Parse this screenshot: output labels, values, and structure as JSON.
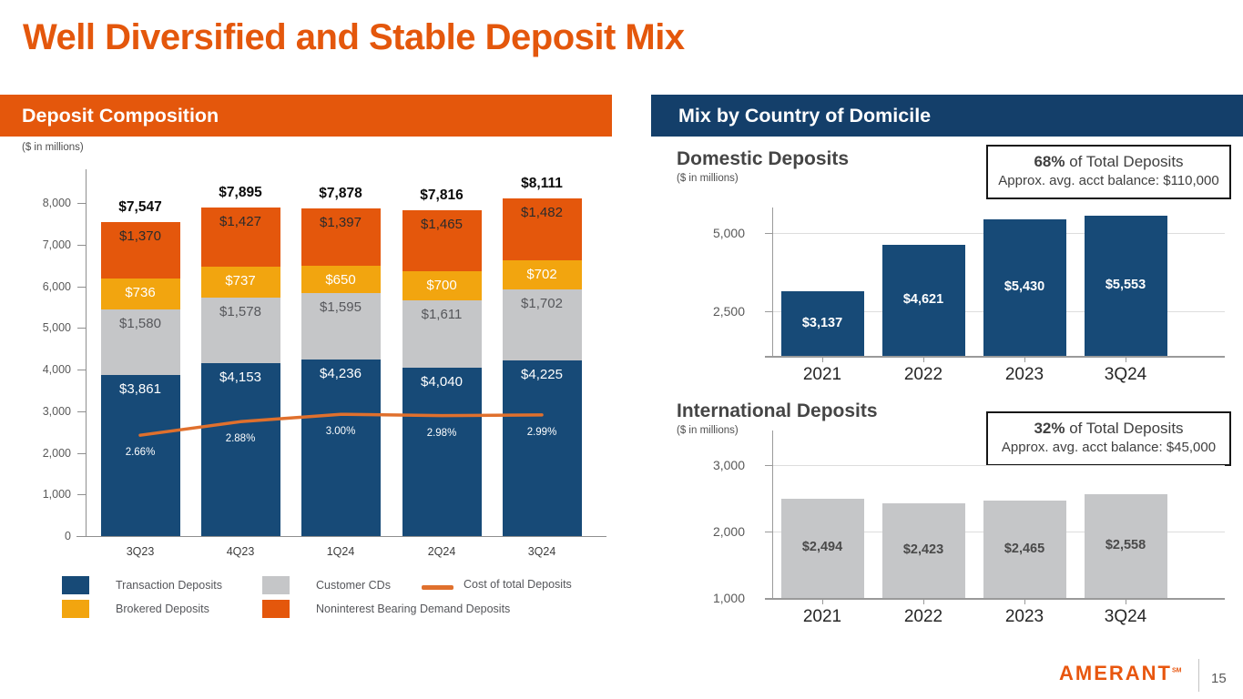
{
  "slide": {
    "title": "Well Diversified and Stable Deposit Mix",
    "title_color": "#E4570C",
    "logo_text": "AMERANT",
    "logo_sm": "SM",
    "logo_color": "#E8560E",
    "page_number": "15"
  },
  "left_panel": {
    "header": "Deposit Composition",
    "header_bg": "#E4570C",
    "units_note": "($ in millions)"
  },
  "right_panel": {
    "header": "Mix by Country of Domicile",
    "header_bg": "#143F6A"
  },
  "chart_data": [
    {
      "id": "deposit_composition",
      "type": "bar",
      "subtype": "stacked-bar-with-line",
      "title": "Deposit Composition",
      "units_note": "($ in millions)",
      "categories": [
        "3Q23",
        "4Q23",
        "1Q24",
        "2Q24",
        "3Q24"
      ],
      "totals": [
        "$7,547",
        "$7,895",
        "$7,878",
        "$7,816",
        "$8,111"
      ],
      "total_values": [
        7547,
        7895,
        7878,
        7816,
        8111
      ],
      "series": [
        {
          "name": "Transaction Deposits",
          "color": "#174A77",
          "label_color": "#FFFFFF",
          "values": [
            3861,
            4153,
            4236,
            4040,
            4225
          ],
          "labels": [
            "$3,861",
            "$4,153",
            "$4,236",
            "$4,040",
            "$4,225"
          ]
        },
        {
          "name": "Customer CDs",
          "color": "#C5C6C8",
          "label_color": "#56575B",
          "values": [
            1580,
            1578,
            1595,
            1611,
            1702
          ],
          "labels": [
            "$1,580",
            "$1,578",
            "$1,595",
            "$1,611",
            "$1,702"
          ]
        },
        {
          "name": "Brokered Deposits",
          "color": "#F2A50F",
          "label_color": "#FFFFFF",
          "values": [
            736,
            737,
            650,
            700,
            702
          ],
          "labels": [
            "$736",
            "$737",
            "$650",
            "$700",
            "$702"
          ]
        },
        {
          "name": "Noninterest Bearing Demand Deposits",
          "color": "#E4570C",
          "label_color": "#2B2B2B",
          "values": [
            1370,
            1427,
            1397,
            1465,
            1482
          ],
          "labels": [
            "$1,370",
            "$1,427",
            "$1,397",
            "$1,465",
            "$1,482"
          ]
        }
      ],
      "line": {
        "name": "Cost of total Deposits",
        "color": "#E0702D",
        "values_pct": [
          2.66,
          2.88,
          3.0,
          2.98,
          2.99
        ],
        "labels": [
          "2.66%",
          "2.88%",
          "3.00%",
          "2.98%",
          "2.99%"
        ]
      },
      "yticks": [
        "0",
        "1,000",
        "2,000",
        "3,000",
        "4,000",
        "5,000",
        "6,000",
        "7,000",
        "8,000"
      ],
      "ylim": [
        0,
        8000
      ],
      "grid": false,
      "legend_position": "bottom"
    },
    {
      "id": "domestic_deposits",
      "type": "bar",
      "title": "Domestic Deposits",
      "units_note": "($ in millions)",
      "categories": [
        "2021",
        "2022",
        "2023",
        "3Q24"
      ],
      "values": [
        3137,
        4621,
        5430,
        5553
      ],
      "labels": [
        "$3,137",
        "$4,621",
        "$5,430",
        "$5,553"
      ],
      "bar_color": "#174A77",
      "label_color": "#FFFFFF",
      "yticks": [
        {
          "value": 2500,
          "label": "2,500"
        },
        {
          "value": 5000,
          "label": "5,000"
        }
      ],
      "ylim": [
        1076,
        5870
      ],
      "grid": true,
      "callout": {
        "pct": "68%",
        "rest": " of Total Deposits",
        "line2": "Approx. avg. acct balance: $110,000"
      }
    },
    {
      "id": "international_deposits",
      "type": "bar",
      "title": "International Deposits",
      "units_note": "($ in millions)",
      "categories": [
        "2021",
        "2022",
        "2023",
        "3Q24"
      ],
      "values": [
        2494,
        2423,
        2465,
        2558
      ],
      "labels": [
        "$2,494",
        "$2,423",
        "$2,465",
        "$2,558"
      ],
      "bar_color": "#C5C6C8",
      "label_color": "#4A4A4A",
      "yticks": [
        {
          "value": 1000,
          "label": "1,000"
        },
        {
          "value": 2000,
          "label": "2,000"
        },
        {
          "value": 3000,
          "label": "3,000"
        }
      ],
      "ylim": [
        1000,
        3560
      ],
      "grid": true,
      "callout": {
        "pct": "32%",
        "rest": " of Total Deposits",
        "line2": "Approx. avg. acct balance: $45,000"
      }
    }
  ]
}
